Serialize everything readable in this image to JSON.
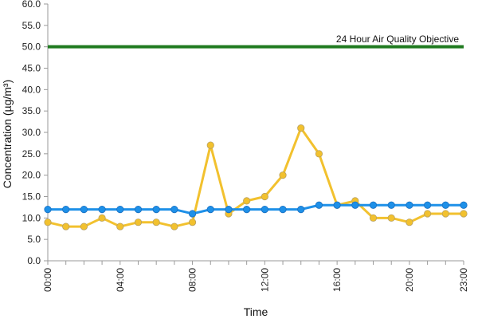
{
  "chart_data": {
    "type": "line",
    "title": "",
    "xlabel": "Time",
    "ylabel": "Concentration (µg/m³)",
    "ylim": [
      0,
      60
    ],
    "y_ticks": [
      0,
      5,
      10,
      15,
      20,
      25,
      30,
      35,
      40,
      45,
      50,
      55,
      60
    ],
    "y_tick_labels": [
      "0.0",
      "5.0",
      "10.0",
      "15.0",
      "20.0",
      "25.0",
      "30.0",
      "35.0",
      "40.0",
      "45.0",
      "50.0",
      "55.0",
      "60.0"
    ],
    "x": [
      "00:00",
      "01:00",
      "02:00",
      "03:00",
      "04:00",
      "05:00",
      "06:00",
      "07:00",
      "08:00",
      "09:00",
      "10:00",
      "11:00",
      "12:00",
      "13:00",
      "14:00",
      "15:00",
      "16:00",
      "17:00",
      "18:00",
      "19:00",
      "20:00",
      "21:00",
      "22:00",
      "23:00"
    ],
    "x_tick_labels": [
      "00:00",
      "04:00",
      "08:00",
      "12:00",
      "16:00",
      "20:00",
      "23:00"
    ],
    "grid": false,
    "legend": "none",
    "series": [
      {
        "color": "#1e90e8",
        "values": [
          12,
          12,
          12,
          12,
          12,
          12,
          12,
          12,
          11,
          12,
          12,
          12,
          12,
          12,
          12,
          13,
          13,
          13,
          13,
          13,
          13,
          13,
          13,
          13
        ]
      },
      {
        "color": "#f2c12e",
        "values": [
          9,
          8,
          8,
          10,
          8,
          9,
          9,
          8,
          9,
          27,
          11,
          14,
          15,
          20,
          31,
          25,
          13,
          14,
          10,
          10,
          9,
          11,
          11,
          11
        ]
      }
    ],
    "reference_line": {
      "value": 50,
      "label": "24 Hour Air Quality Objective",
      "color": "#1f7a1f"
    }
  }
}
